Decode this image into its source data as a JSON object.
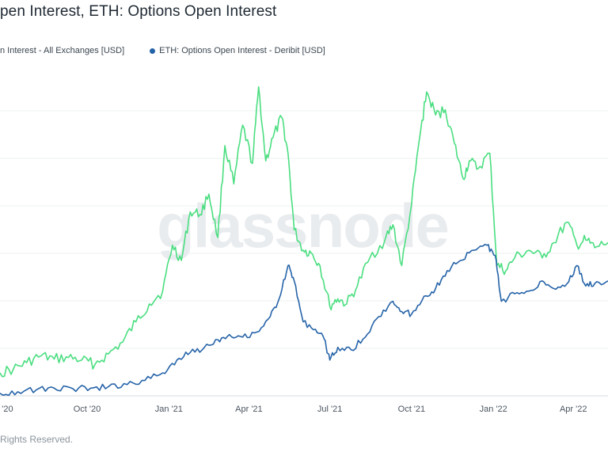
{
  "header": {
    "title": "pen Interest, ETH: Options Open Interest"
  },
  "legend": {
    "items": [
      {
        "label": "n Interest - All Exchanges [USD]",
        "color": "#4ade80"
      },
      {
        "label": "ETH: Options Open Interest - Deribit [USD]",
        "color": "#2563a8"
      }
    ]
  },
  "watermark": "glassnode",
  "footer": {
    "text": "Rights Reserved."
  },
  "chart_data": {
    "type": "line",
    "title": "",
    "xlabel": "",
    "ylabel": "",
    "grid": true,
    "legend_position": "top-left",
    "x_ticks": [
      {
        "date": "2020-07-01",
        "label": "l '20"
      },
      {
        "date": "2020-10-01",
        "label": "Oct '20"
      },
      {
        "date": "2021-01-01",
        "label": "Jan '21"
      },
      {
        "date": "2021-04-01",
        "label": "Apr '21"
      },
      {
        "date": "2021-07-01",
        "label": "Jul '21"
      },
      {
        "date": "2021-10-01",
        "label": "Oct '21"
      },
      {
        "date": "2022-01-01",
        "label": "Jan '22"
      },
      {
        "date": "2022-04-01",
        "label": "Apr '22"
      }
    ],
    "x_range": [
      "2020-06-25",
      "2022-05-10"
    ],
    "y_range": [
      0,
      6.2
    ],
    "series": [
      {
        "name": "n Interest - All Exchanges [USD]",
        "color": "#4ade80",
        "points": [
          [
            "2020-06-25",
            0.45
          ],
          [
            "2020-07-10",
            0.52
          ],
          [
            "2020-07-25",
            0.65
          ],
          [
            "2020-08-10",
            0.78
          ],
          [
            "2020-08-25",
            0.72
          ],
          [
            "2020-09-10",
            0.75
          ],
          [
            "2020-09-25",
            0.7
          ],
          [
            "2020-10-10",
            0.62
          ],
          [
            "2020-10-25",
            0.82
          ],
          [
            "2020-11-10",
            1.05
          ],
          [
            "2020-11-25",
            1.45
          ],
          [
            "2020-12-10",
            1.8
          ],
          [
            "2020-12-25",
            2.05
          ],
          [
            "2021-01-05",
            2.95
          ],
          [
            "2021-01-15",
            2.65
          ],
          [
            "2021-01-25",
            3.6
          ],
          [
            "2021-02-05",
            3.55
          ],
          [
            "2021-02-15",
            3.95
          ],
          [
            "2021-02-25",
            3.1
          ],
          [
            "2021-03-05",
            4.9
          ],
          [
            "2021-03-15",
            4.15
          ],
          [
            "2021-03-25",
            5.3
          ],
          [
            "2021-04-05",
            4.55
          ],
          [
            "2021-04-12",
            6.05
          ],
          [
            "2021-04-20",
            4.6
          ],
          [
            "2021-04-28",
            5.05
          ],
          [
            "2021-05-08",
            5.45
          ],
          [
            "2021-05-15",
            4.75
          ],
          [
            "2021-05-22",
            3.25
          ],
          [
            "2021-06-01",
            2.85
          ],
          [
            "2021-06-10",
            2.8
          ],
          [
            "2021-06-20",
            2.55
          ],
          [
            "2021-07-01",
            1.75
          ],
          [
            "2021-07-10",
            1.9
          ],
          [
            "2021-07-20",
            1.8
          ],
          [
            "2021-08-01",
            2.15
          ],
          [
            "2021-08-15",
            2.7
          ],
          [
            "2021-09-01",
            3.05
          ],
          [
            "2021-09-10",
            3.35
          ],
          [
            "2021-09-20",
            2.55
          ],
          [
            "2021-10-01",
            3.75
          ],
          [
            "2021-10-10",
            5.05
          ],
          [
            "2021-10-18",
            5.95
          ],
          [
            "2021-10-28",
            5.5
          ],
          [
            "2021-11-08",
            5.6
          ],
          [
            "2021-11-18",
            4.95
          ],
          [
            "2021-11-28",
            4.25
          ],
          [
            "2021-12-05",
            4.6
          ],
          [
            "2021-12-15",
            4.45
          ],
          [
            "2021-12-28",
            4.75
          ],
          [
            "2022-01-05",
            2.55
          ],
          [
            "2022-01-15",
            2.45
          ],
          [
            "2022-01-25",
            2.7
          ],
          [
            "2022-02-10",
            2.85
          ],
          [
            "2022-02-25",
            2.7
          ],
          [
            "2022-03-10",
            3.0
          ],
          [
            "2022-03-25",
            3.4
          ],
          [
            "2022-04-05",
            2.95
          ],
          [
            "2022-04-15",
            3.05
          ],
          [
            "2022-04-25",
            2.9
          ],
          [
            "2022-05-10",
            3.0
          ]
        ]
      },
      {
        "name": "ETH: Options Open Interest - Deribit [USD]",
        "color": "#2563a8",
        "points": [
          [
            "2020-06-25",
            0.05
          ],
          [
            "2020-07-15",
            0.08
          ],
          [
            "2020-08-05",
            0.12
          ],
          [
            "2020-08-25",
            0.15
          ],
          [
            "2020-09-15",
            0.14
          ],
          [
            "2020-10-05",
            0.15
          ],
          [
            "2020-10-25",
            0.18
          ],
          [
            "2020-11-15",
            0.22
          ],
          [
            "2020-12-05",
            0.3
          ],
          [
            "2020-12-25",
            0.45
          ],
          [
            "2021-01-10",
            0.7
          ],
          [
            "2021-01-25",
            0.85
          ],
          [
            "2021-02-10",
            0.95
          ],
          [
            "2021-02-25",
            1.1
          ],
          [
            "2021-03-10",
            1.2
          ],
          [
            "2021-03-25",
            1.15
          ],
          [
            "2021-04-10",
            1.25
          ],
          [
            "2021-04-25",
            1.55
          ],
          [
            "2021-05-05",
            1.9
          ],
          [
            "2021-05-15",
            2.55
          ],
          [
            "2021-05-22",
            2.25
          ],
          [
            "2021-06-01",
            1.45
          ],
          [
            "2021-06-15",
            1.3
          ],
          [
            "2021-06-25",
            1.1
          ],
          [
            "2021-07-01",
            0.7
          ],
          [
            "2021-07-10",
            0.95
          ],
          [
            "2021-07-25",
            0.9
          ],
          [
            "2021-08-10",
            1.15
          ],
          [
            "2021-08-25",
            1.55
          ],
          [
            "2021-09-10",
            1.85
          ],
          [
            "2021-09-20",
            1.65
          ],
          [
            "2021-10-01",
            1.6
          ],
          [
            "2021-10-15",
            1.95
          ],
          [
            "2021-10-28",
            2.1
          ],
          [
            "2021-11-10",
            2.45
          ],
          [
            "2021-11-25",
            2.65
          ],
          [
            "2021-12-10",
            2.85
          ],
          [
            "2021-12-25",
            2.95
          ],
          [
            "2022-01-03",
            2.75
          ],
          [
            "2022-01-10",
            1.85
          ],
          [
            "2022-01-25",
            2.0
          ],
          [
            "2022-02-10",
            2.05
          ],
          [
            "2022-02-25",
            2.25
          ],
          [
            "2022-03-10",
            2.1
          ],
          [
            "2022-03-25",
            2.2
          ],
          [
            "2022-04-05",
            2.55
          ],
          [
            "2022-04-15",
            2.15
          ],
          [
            "2022-04-25",
            2.2
          ],
          [
            "2022-05-10",
            2.25
          ]
        ]
      }
    ]
  }
}
